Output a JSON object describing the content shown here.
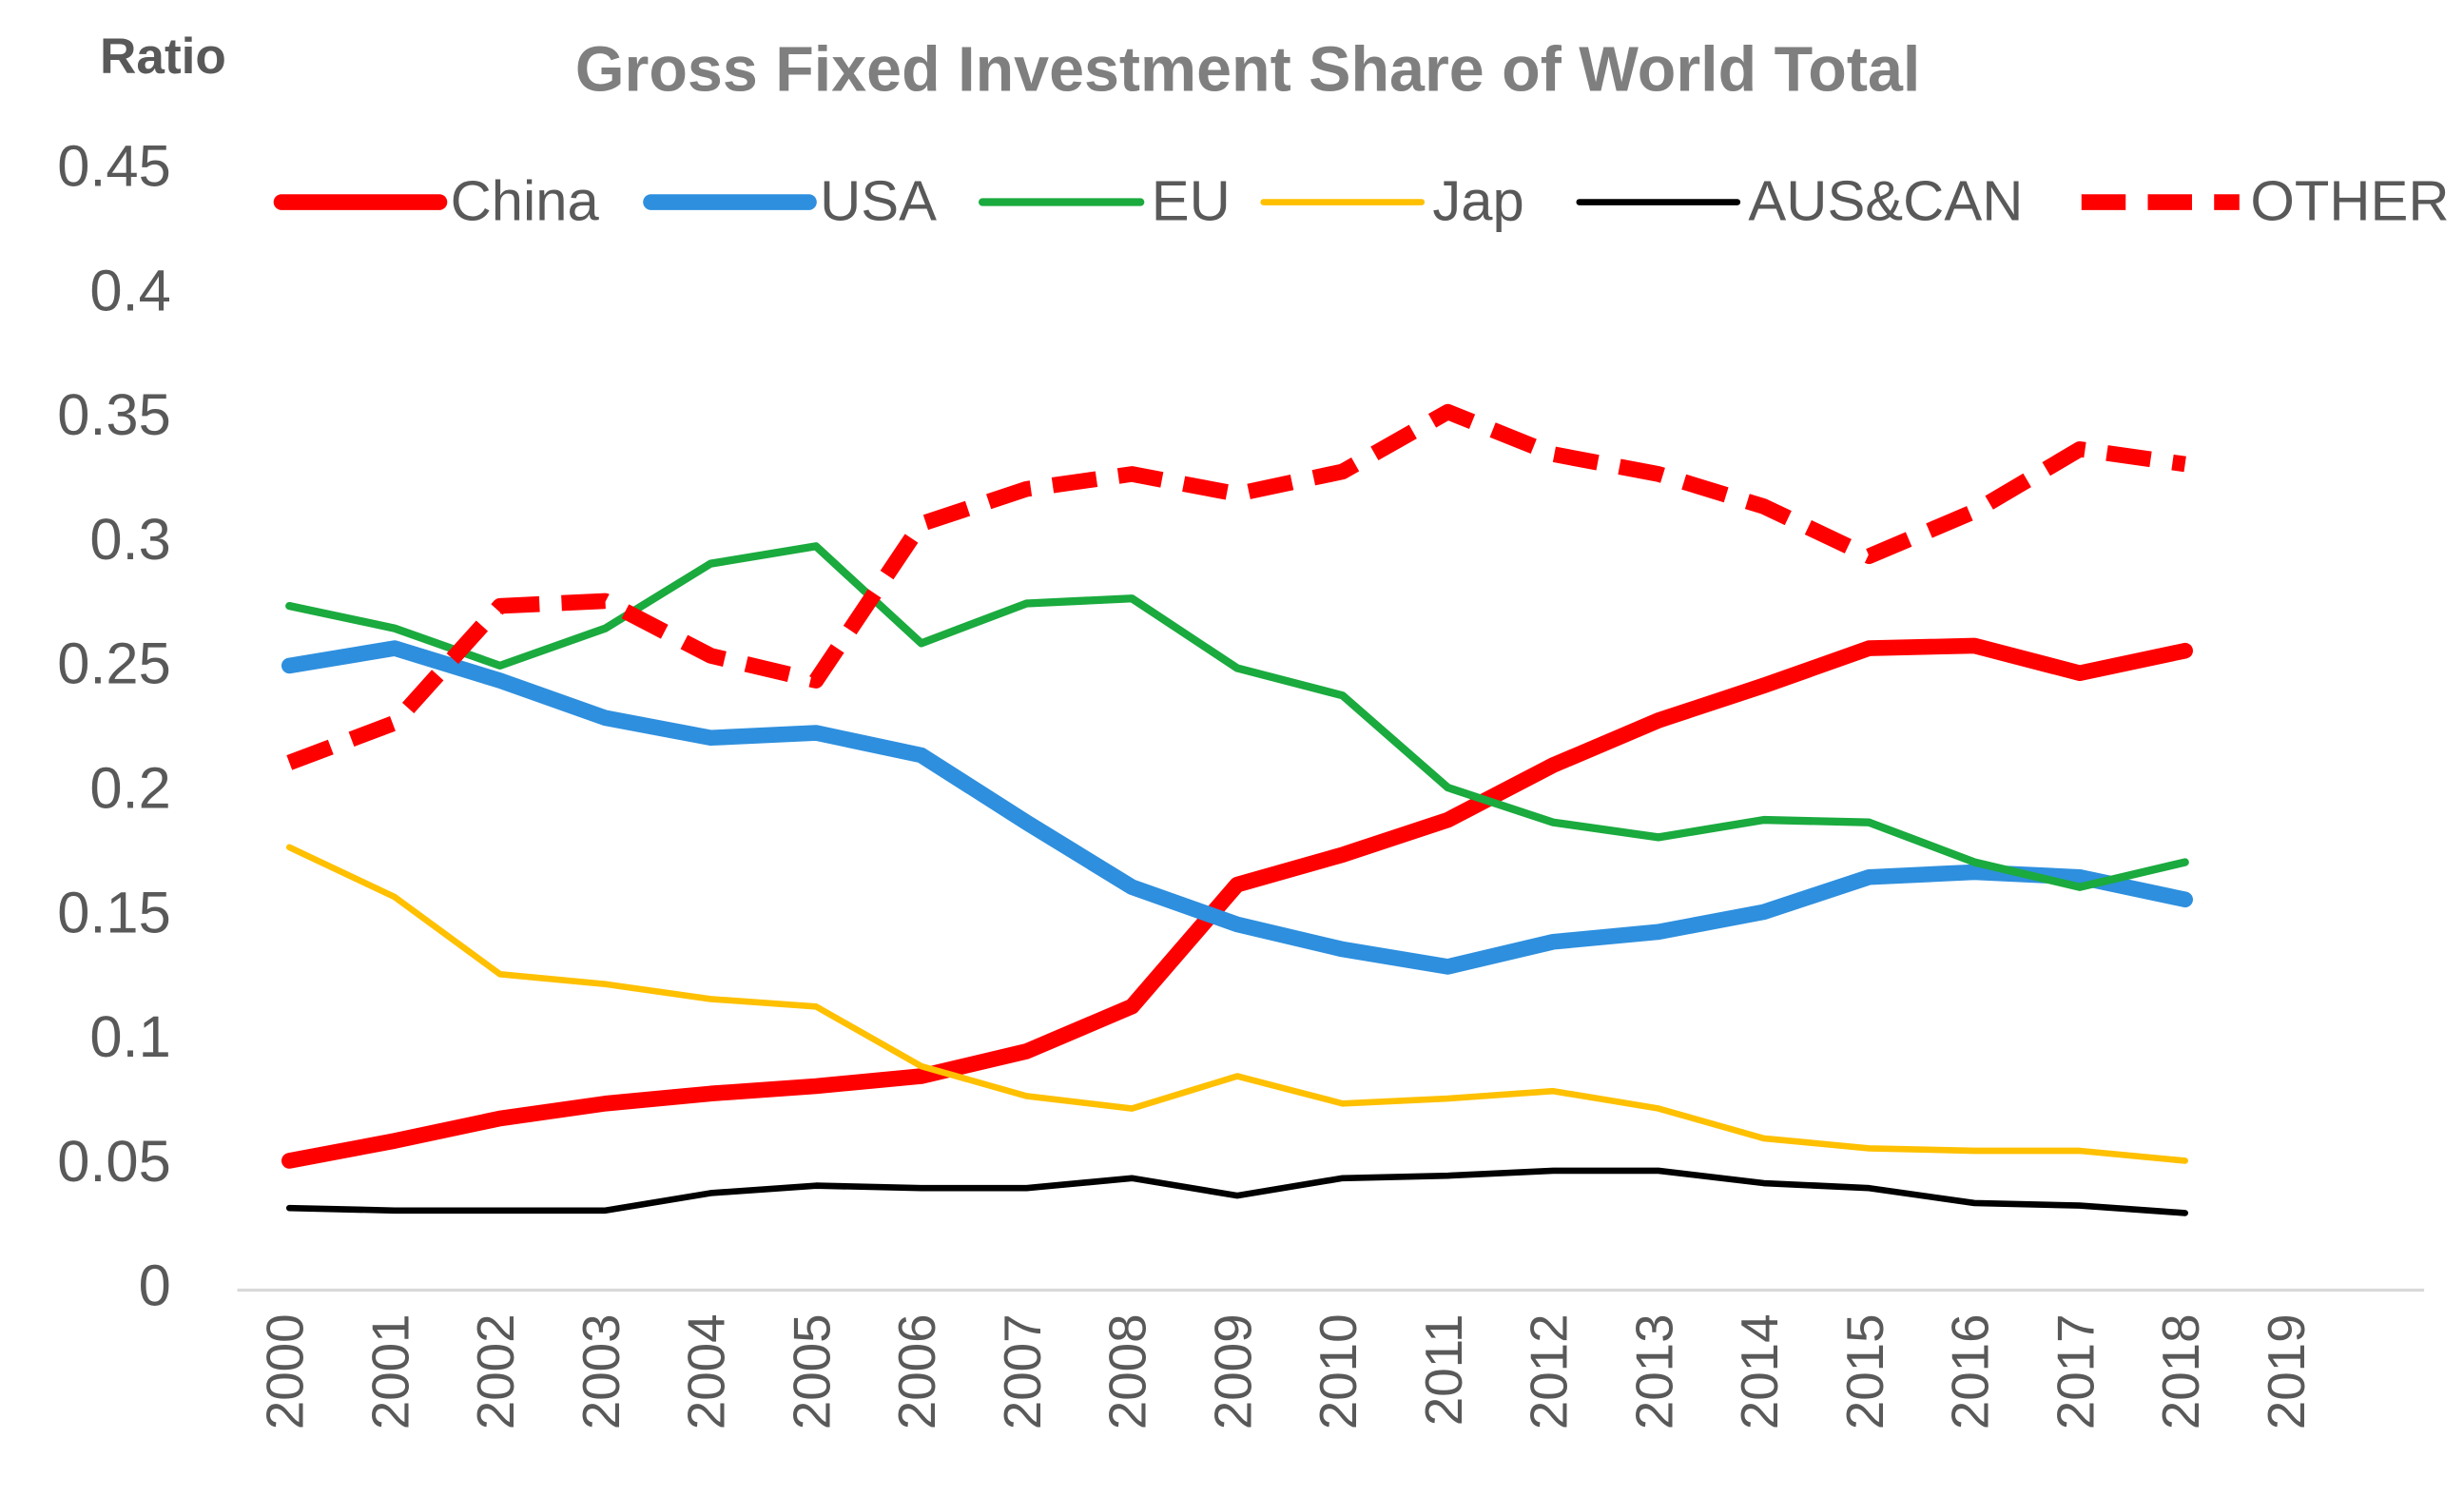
{
  "chart_data": {
    "type": "line",
    "title": "Gross Fixed Investment Share of World Total",
    "y_label": "Ratio",
    "categories": [
      "2000",
      "2001",
      "2002",
      "2003",
      "2004",
      "2005",
      "2006",
      "2007",
      "2008",
      "2009",
      "2010",
      "2011",
      "2012",
      "2013",
      "2014",
      "2015",
      "2016",
      "2017",
      "2018",
      "2019"
    ],
    "series": [
      {
        "name": "China",
        "color": "#ff0000",
        "values": [
          0.052,
          0.06,
          0.069,
          0.075,
          0.079,
          0.082,
          0.086,
          0.096,
          0.114,
          0.163,
          0.175,
          0.189,
          0.211,
          0.229,
          0.243,
          0.258,
          0.259,
          0.248,
          0.257,
          null
        ]
      },
      {
        "name": "USA",
        "color": "#2e8fde",
        "values": [
          0.251,
          0.258,
          0.245,
          0.23,
          0.222,
          0.224,
          0.215,
          0.188,
          0.162,
          0.147,
          0.137,
          0.13,
          0.14,
          0.144,
          0.152,
          0.166,
          0.168,
          0.166,
          0.157,
          null
        ]
      },
      {
        "name": "EU",
        "color": "#1aaa3e",
        "values": [
          0.275,
          0.266,
          0.251,
          0.266,
          0.292,
          0.299,
          0.26,
          0.276,
          0.278,
          0.25,
          0.239,
          0.202,
          0.188,
          0.182,
          0.189,
          0.188,
          0.172,
          0.162,
          0.172,
          null
        ]
      },
      {
        "name": "Jap",
        "color": "#ffc000",
        "values": [
          0.178,
          0.158,
          0.127,
          0.123,
          0.117,
          0.114,
          0.09,
          0.078,
          0.073,
          0.086,
          0.075,
          0.077,
          0.08,
          0.073,
          0.061,
          0.057,
          0.056,
          0.056,
          0.052,
          null
        ]
      },
      {
        "name": "AUS&CAN",
        "color": "#000000",
        "values": [
          0.033,
          0.032,
          0.032,
          0.032,
          0.039,
          0.042,
          0.041,
          0.041,
          0.045,
          0.038,
          0.045,
          0.046,
          0.048,
          0.048,
          0.043,
          0.041,
          0.035,
          0.034,
          0.031,
          null
        ]
      },
      {
        "name": "OTHER",
        "color": "#ff0000",
        "dashed": true,
        "values": [
          0.212,
          0.228,
          0.275,
          0.277,
          0.255,
          0.245,
          0.308,
          0.322,
          0.328,
          0.32,
          0.329,
          0.353,
          0.336,
          0.328,
          0.315,
          0.295,
          0.313,
          0.338,
          0.332,
          null
        ]
      }
    ],
    "ylim": [
      0,
      0.45
    ],
    "yticks": [
      0,
      0.05,
      0.1,
      0.15,
      0.2,
      0.25,
      0.3,
      0.35,
      0.4,
      0.45
    ],
    "grid": false,
    "legend": "top"
  }
}
